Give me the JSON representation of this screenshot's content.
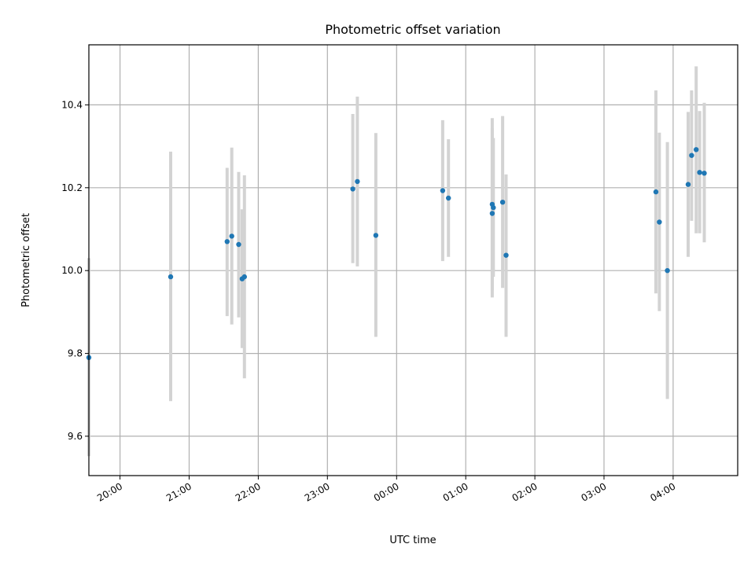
{
  "chart_data": {
    "type": "scatter",
    "title": "Photometric offset variation",
    "xlabel": "UTC time",
    "ylabel": "Photometric offset",
    "xlim": [
      "19:33",
      "04:56"
    ],
    "ylim": [
      9.505,
      10.545
    ],
    "grid": true,
    "xticks": [
      "20:00",
      "21:00",
      "22:00",
      "23:00",
      "00:00",
      "01:00",
      "02:00",
      "03:00",
      "04:00"
    ],
    "yticks": [
      9.6,
      9.8,
      10.0,
      10.2,
      10.4
    ],
    "ytick_labels": [
      "9.6",
      "9.8",
      "10.0",
      "10.2",
      "10.4"
    ],
    "colors": {
      "points": "#1f77b4",
      "error_bars": "#d3d3d3"
    },
    "points": [
      {
        "time": "19:33",
        "y": 9.79,
        "err_low": 9.552,
        "err_high": 10.03
      },
      {
        "time": "20:44",
        "y": 9.985,
        "err_low": 9.685,
        "err_high": 10.287
      },
      {
        "time": "21:33",
        "y": 10.07,
        "err_low": 9.89,
        "err_high": 10.248
      },
      {
        "time": "21:37",
        "y": 10.083,
        "err_low": 9.87,
        "err_high": 10.297
      },
      {
        "time": "21:43",
        "y": 10.063,
        "err_low": 9.887,
        "err_high": 10.238
      },
      {
        "time": "21:46",
        "y": 9.98,
        "err_low": 9.813,
        "err_high": 10.148
      },
      {
        "time": "21:48",
        "y": 9.985,
        "err_low": 9.74,
        "err_high": 10.23
      },
      {
        "time": "23:22",
        "y": 10.197,
        "err_low": 10.018,
        "err_high": 10.378
      },
      {
        "time": "23:26",
        "y": 10.215,
        "err_low": 10.01,
        "err_high": 10.42
      },
      {
        "time": "23:42",
        "y": 10.085,
        "err_low": 9.84,
        "err_high": 10.332
      },
      {
        "time": "00:40",
        "y": 10.193,
        "err_low": 10.023,
        "err_high": 10.363
      },
      {
        "time": "00:45",
        "y": 10.175,
        "err_low": 10.033,
        "err_high": 10.317
      },
      {
        "time": "01:23",
        "y": 10.138,
        "err_low": 9.935,
        "err_high": 10.343
      },
      {
        "time": "01:23",
        "y": 10.16,
        "err_low": 9.952,
        "err_high": 10.368
      },
      {
        "time": "01:24",
        "y": 10.152,
        "err_low": 9.985,
        "err_high": 10.32
      },
      {
        "time": "01:32",
        "y": 10.165,
        "err_low": 9.958,
        "err_high": 10.373
      },
      {
        "time": "01:35",
        "y": 10.037,
        "err_low": 9.84,
        "err_high": 10.232
      },
      {
        "time": "03:45",
        "y": 10.19,
        "err_low": 9.945,
        "err_high": 10.435
      },
      {
        "time": "03:48",
        "y": 10.117,
        "err_low": 9.902,
        "err_high": 10.333
      },
      {
        "time": "03:55",
        "y": 10.0,
        "err_low": 9.69,
        "err_high": 10.31
      },
      {
        "time": "04:13",
        "y": 10.208,
        "err_low": 10.033,
        "err_high": 10.383
      },
      {
        "time": "04:16",
        "y": 10.278,
        "err_low": 10.12,
        "err_high": 10.435
      },
      {
        "time": "04:20",
        "y": 10.292,
        "err_low": 10.09,
        "err_high": 10.493
      },
      {
        "time": "04:23",
        "y": 10.237,
        "err_low": 10.09,
        "err_high": 10.385
      },
      {
        "time": "04:27",
        "y": 10.235,
        "err_low": 10.068,
        "err_high": 10.405
      }
    ]
  }
}
